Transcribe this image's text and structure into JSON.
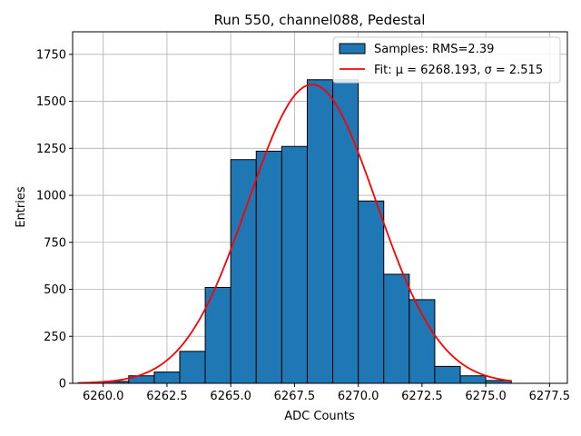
{
  "chart_data": {
    "type": "bar",
    "title": "Run 550, channel088, Pedestal",
    "xlabel": "ADC Counts",
    "ylabel": "Entries",
    "xlim": [
      6258.8,
      6278.2
    ],
    "ylim": [
      0,
      1870
    ],
    "grid": true,
    "legend_position": "top-right",
    "x_ticks": [
      6260.0,
      6262.5,
      6265.0,
      6267.5,
      6270.0,
      6272.5,
      6275.0,
      6277.5
    ],
    "x_tick_labels": [
      "6260.0",
      "6262.5",
      "6265.0",
      "6267.5",
      "6270.0",
      "6272.5",
      "6275.0",
      "6277.5"
    ],
    "y_ticks": [
      0,
      250,
      500,
      750,
      1000,
      1250,
      1500,
      1750
    ],
    "y_tick_labels": [
      "0",
      "250",
      "500",
      "750",
      "1000",
      "1250",
      "1500",
      "1750"
    ],
    "bins": {
      "edges": [
        6260,
        6261,
        6262,
        6263,
        6264,
        6265,
        6266,
        6267,
        6268,
        6269,
        6270,
        6271,
        6272,
        6273,
        6274,
        6275,
        6276
      ],
      "counts": [
        10,
        40,
        60,
        170,
        510,
        1190,
        1235,
        1260,
        1615,
        1615,
        970,
        580,
        445,
        90,
        40,
        15
      ]
    },
    "series": [
      {
        "name": "Samples: RMS=2.39",
        "kind": "histogram",
        "color": "#1f77b4",
        "edge_color": "#000000"
      },
      {
        "name": "Fit: μ = 6268.193, σ = 2.515",
        "kind": "gaussian",
        "color": "#ff0000",
        "mu": 6268.193,
        "sigma": 2.515,
        "amplitude": 1590,
        "x_range": [
          6259,
          6276
        ]
      }
    ]
  }
}
